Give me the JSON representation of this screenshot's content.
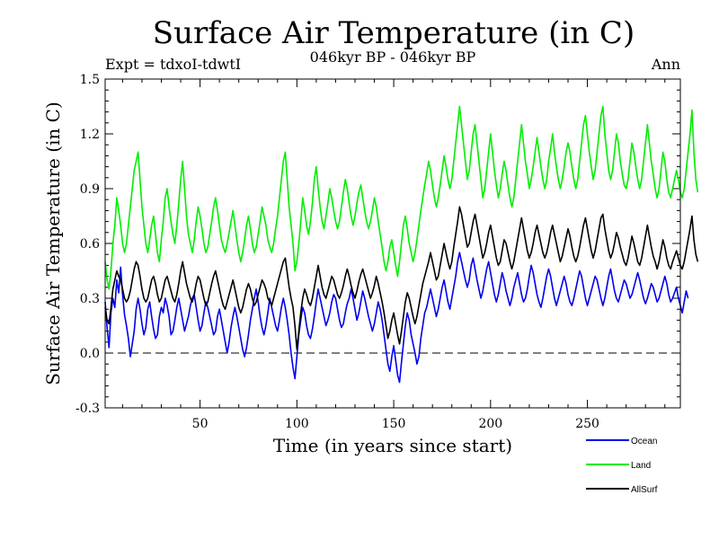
{
  "chart_data": {
    "type": "line",
    "title": "Surface Air Temperature (in C)",
    "subtitle": "046kyr BP - 046kyr BP",
    "expt_label": "Expt = tdxoI-tdwtI",
    "season_label": "Ann",
    "xlabel": "Time (in years since start)",
    "ylabel": "Surface Air Temperature (in C)",
    "xlim": [
      1,
      298
    ],
    "ylim": [
      -0.3,
      1.5
    ],
    "xticks": [
      50,
      100,
      150,
      200,
      250
    ],
    "yticks": [
      -0.3,
      0.0,
      0.3,
      0.6,
      0.9,
      1.2,
      1.5
    ],
    "ytick_labels": [
      "-0.3",
      "0.0",
      "0.3",
      "0.6",
      "0.9",
      "1.2",
      "1.5"
    ],
    "zero_line": "dashed",
    "legend_position": "bottom-right, below plot",
    "x_step": 1,
    "series": [
      {
        "name": "Ocean",
        "color": "#0000ee",
        "values": [
          0.28,
          0.14,
          0.03,
          0.22,
          0.3,
          0.25,
          0.4,
          0.33,
          0.47,
          0.32,
          0.21,
          0.15,
          0.08,
          -0.02,
          0.05,
          0.12,
          0.24,
          0.3,
          0.24,
          0.16,
          0.1,
          0.14,
          0.24,
          0.28,
          0.2,
          0.13,
          0.08,
          0.1,
          0.2,
          0.25,
          0.22,
          0.3,
          0.26,
          0.2,
          0.1,
          0.12,
          0.18,
          0.25,
          0.3,
          0.24,
          0.18,
          0.12,
          0.16,
          0.2,
          0.26,
          0.3,
          0.32,
          0.25,
          0.18,
          0.12,
          0.15,
          0.22,
          0.28,
          0.25,
          0.2,
          0.15,
          0.1,
          0.12,
          0.2,
          0.24,
          0.18,
          0.12,
          0.06,
          0.0,
          0.06,
          0.14,
          0.2,
          0.25,
          0.2,
          0.14,
          0.08,
          0.02,
          -0.02,
          0.03,
          0.1,
          0.18,
          0.24,
          0.3,
          0.35,
          0.28,
          0.2,
          0.14,
          0.1,
          0.15,
          0.22,
          0.3,
          0.25,
          0.2,
          0.15,
          0.12,
          0.18,
          0.25,
          0.3,
          0.25,
          0.18,
          0.1,
          0.0,
          -0.08,
          -0.14,
          -0.02,
          0.1,
          0.18,
          0.25,
          0.22,
          0.15,
          0.1,
          0.08,
          0.13,
          0.2,
          0.28,
          0.35,
          0.3,
          0.25,
          0.2,
          0.15,
          0.18,
          0.22,
          0.28,
          0.32,
          0.3,
          0.24,
          0.18,
          0.14,
          0.16,
          0.22,
          0.27,
          0.3,
          0.35,
          0.3,
          0.24,
          0.18,
          0.22,
          0.28,
          0.34,
          0.3,
          0.25,
          0.2,
          0.16,
          0.12,
          0.16,
          0.22,
          0.28,
          0.24,
          0.18,
          0.1,
          0.02,
          -0.06,
          -0.1,
          -0.02,
          0.04,
          -0.04,
          -0.12,
          -0.16,
          -0.05,
          0.05,
          0.15,
          0.22,
          0.18,
          0.1,
          0.05,
          0.0,
          -0.06,
          -0.02,
          0.08,
          0.15,
          0.22,
          0.25,
          0.3,
          0.35,
          0.3,
          0.25,
          0.2,
          0.24,
          0.3,
          0.36,
          0.4,
          0.34,
          0.28,
          0.24,
          0.3,
          0.36,
          0.42,
          0.5,
          0.55,
          0.5,
          0.45,
          0.4,
          0.36,
          0.4,
          0.48,
          0.52,
          0.46,
          0.4,
          0.35,
          0.3,
          0.34,
          0.4,
          0.46,
          0.5,
          0.44,
          0.38,
          0.32,
          0.28,
          0.32,
          0.38,
          0.44,
          0.4,
          0.34,
          0.3,
          0.26,
          0.3,
          0.36,
          0.4,
          0.44,
          0.38,
          0.32,
          0.28,
          0.3,
          0.35,
          0.42,
          0.48,
          0.44,
          0.38,
          0.32,
          0.28,
          0.25,
          0.3,
          0.36,
          0.42,
          0.46,
          0.42,
          0.36,
          0.3,
          0.26,
          0.3,
          0.34,
          0.38,
          0.42,
          0.38,
          0.32,
          0.28,
          0.26,
          0.3,
          0.35,
          0.4,
          0.45,
          0.42,
          0.36,
          0.3,
          0.26,
          0.3,
          0.34,
          0.38,
          0.42,
          0.4,
          0.35,
          0.3,
          0.26,
          0.3,
          0.36,
          0.42,
          0.46,
          0.4,
          0.34,
          0.3,
          0.28,
          0.32,
          0.36,
          0.4,
          0.38,
          0.34,
          0.3,
          0.32,
          0.36,
          0.4,
          0.44,
          0.4,
          0.35,
          0.3,
          0.27,
          0.3,
          0.34,
          0.38,
          0.36,
          0.32,
          0.28,
          0.3,
          0.34,
          0.38,
          0.42,
          0.38,
          0.32,
          0.28,
          0.3,
          0.33,
          0.36,
          0.3,
          0.26,
          0.22,
          0.28,
          0.34,
          0.3
        ]
      },
      {
        "name": "Land",
        "color": "#00ee00",
        "values": [
          0.5,
          0.4,
          0.35,
          0.45,
          0.6,
          0.7,
          0.85,
          0.78,
          0.7,
          0.6,
          0.55,
          0.6,
          0.7,
          0.8,
          0.9,
          1.0,
          1.05,
          1.1,
          0.95,
          0.8,
          0.7,
          0.6,
          0.55,
          0.62,
          0.7,
          0.75,
          0.65,
          0.55,
          0.5,
          0.62,
          0.72,
          0.85,
          0.9,
          0.8,
          0.72,
          0.65,
          0.6,
          0.7,
          0.82,
          0.95,
          1.05,
          0.9,
          0.75,
          0.65,
          0.6,
          0.55,
          0.62,
          0.72,
          0.8,
          0.75,
          0.68,
          0.6,
          0.55,
          0.58,
          0.65,
          0.72,
          0.8,
          0.85,
          0.78,
          0.7,
          0.62,
          0.58,
          0.55,
          0.6,
          0.66,
          0.72,
          0.78,
          0.7,
          0.62,
          0.55,
          0.5,
          0.55,
          0.62,
          0.7,
          0.75,
          0.68,
          0.6,
          0.55,
          0.58,
          0.65,
          0.72,
          0.8,
          0.75,
          0.7,
          0.62,
          0.58,
          0.55,
          0.6,
          0.68,
          0.75,
          0.85,
          0.95,
          1.05,
          1.1,
          0.95,
          0.8,
          0.7,
          0.6,
          0.45,
          0.5,
          0.6,
          0.72,
          0.85,
          0.78,
          0.7,
          0.65,
          0.72,
          0.82,
          0.95,
          1.02,
          0.9,
          0.8,
          0.72,
          0.68,
          0.75,
          0.82,
          0.9,
          0.85,
          0.78,
          0.72,
          0.68,
          0.72,
          0.8,
          0.88,
          0.95,
          0.9,
          0.82,
          0.75,
          0.7,
          0.75,
          0.82,
          0.88,
          0.92,
          0.85,
          0.78,
          0.72,
          0.68,
          0.72,
          0.78,
          0.85,
          0.8,
          0.72,
          0.65,
          0.58,
          0.5,
          0.45,
          0.5,
          0.58,
          0.62,
          0.55,
          0.48,
          0.42,
          0.5,
          0.6,
          0.7,
          0.75,
          0.68,
          0.6,
          0.55,
          0.5,
          0.55,
          0.62,
          0.7,
          0.78,
          0.85,
          0.92,
          0.98,
          1.05,
          1.0,
          0.92,
          0.85,
          0.8,
          0.85,
          0.92,
          1.0,
          1.08,
          1.02,
          0.95,
          0.9,
          0.95,
          1.05,
          1.15,
          1.25,
          1.35,
          1.25,
          1.15,
          1.05,
          0.95,
          1.0,
          1.1,
          1.2,
          1.25,
          1.15,
          1.05,
          0.95,
          0.85,
          0.9,
          1.0,
          1.1,
          1.2,
          1.1,
          1.0,
          0.92,
          0.85,
          0.9,
          0.98,
          1.05,
          1.0,
          0.92,
          0.85,
          0.8,
          0.85,
          0.95,
          1.05,
          1.15,
          1.25,
          1.15,
          1.05,
          0.98,
          0.9,
          0.95,
          1.02,
          1.1,
          1.18,
          1.1,
          1.02,
          0.95,
          0.9,
          0.95,
          1.05,
          1.12,
          1.2,
          1.1,
          1.02,
          0.95,
          0.9,
          0.95,
          1.02,
          1.1,
          1.15,
          1.1,
          1.02,
          0.95,
          0.9,
          0.95,
          1.05,
          1.15,
          1.25,
          1.3,
          1.2,
          1.1,
          1.02,
          0.95,
          1.0,
          1.1,
          1.2,
          1.3,
          1.35,
          1.2,
          1.1,
          1.0,
          0.95,
          1.0,
          1.1,
          1.2,
          1.15,
          1.05,
          0.98,
          0.92,
          0.9,
          0.95,
          1.05,
          1.15,
          1.1,
          1.02,
          0.95,
          0.9,
          0.95,
          1.05,
          1.15,
          1.25,
          1.15,
          1.05,
          0.98,
          0.9,
          0.85,
          0.9,
          1.0,
          1.1,
          1.05,
          0.95,
          0.88,
          0.85,
          0.9,
          0.95,
          1.0,
          0.95,
          0.88,
          0.85,
          0.9,
          1.0,
          1.1,
          1.2,
          1.33,
          1.1,
          0.95,
          0.88
        ]
      },
      {
        "name": "AllSurf",
        "color": "#000000",
        "values": [
          0.25,
          0.18,
          0.16,
          0.25,
          0.35,
          0.4,
          0.45,
          0.42,
          0.4,
          0.35,
          0.3,
          0.28,
          0.3,
          0.34,
          0.4,
          0.46,
          0.5,
          0.48,
          0.42,
          0.35,
          0.3,
          0.28,
          0.3,
          0.35,
          0.4,
          0.42,
          0.38,
          0.32,
          0.28,
          0.3,
          0.35,
          0.4,
          0.42,
          0.38,
          0.34,
          0.3,
          0.28,
          0.32,
          0.38,
          0.45,
          0.5,
          0.44,
          0.38,
          0.34,
          0.3,
          0.28,
          0.32,
          0.38,
          0.42,
          0.4,
          0.35,
          0.3,
          0.26,
          0.28,
          0.33,
          0.38,
          0.42,
          0.45,
          0.4,
          0.35,
          0.3,
          0.26,
          0.24,
          0.28,
          0.32,
          0.36,
          0.4,
          0.35,
          0.3,
          0.25,
          0.22,
          0.25,
          0.3,
          0.35,
          0.38,
          0.35,
          0.3,
          0.26,
          0.28,
          0.32,
          0.36,
          0.4,
          0.38,
          0.35,
          0.3,
          0.28,
          0.26,
          0.3,
          0.34,
          0.38,
          0.42,
          0.46,
          0.5,
          0.52,
          0.44,
          0.36,
          0.3,
          0.25,
          0.15,
          0.02,
          0.12,
          0.22,
          0.3,
          0.35,
          0.32,
          0.28,
          0.26,
          0.3,
          0.36,
          0.42,
          0.48,
          0.42,
          0.36,
          0.32,
          0.3,
          0.34,
          0.38,
          0.42,
          0.4,
          0.36,
          0.32,
          0.3,
          0.33,
          0.37,
          0.42,
          0.46,
          0.42,
          0.37,
          0.33,
          0.3,
          0.34,
          0.39,
          0.43,
          0.46,
          0.42,
          0.38,
          0.34,
          0.3,
          0.33,
          0.37,
          0.42,
          0.38,
          0.33,
          0.28,
          0.22,
          0.15,
          0.08,
          0.12,
          0.18,
          0.22,
          0.16,
          0.1,
          0.05,
          0.12,
          0.2,
          0.28,
          0.33,
          0.3,
          0.25,
          0.2,
          0.16,
          0.2,
          0.26,
          0.32,
          0.38,
          0.42,
          0.46,
          0.5,
          0.55,
          0.5,
          0.45,
          0.4,
          0.42,
          0.48,
          0.54,
          0.6,
          0.55,
          0.5,
          0.46,
          0.5,
          0.58,
          0.65,
          0.72,
          0.8,
          0.76,
          0.7,
          0.64,
          0.58,
          0.6,
          0.66,
          0.72,
          0.76,
          0.7,
          0.64,
          0.58,
          0.52,
          0.55,
          0.6,
          0.66,
          0.7,
          0.64,
          0.58,
          0.52,
          0.48,
          0.5,
          0.56,
          0.62,
          0.6,
          0.55,
          0.5,
          0.46,
          0.5,
          0.56,
          0.62,
          0.68,
          0.74,
          0.68,
          0.62,
          0.56,
          0.52,
          0.55,
          0.6,
          0.66,
          0.7,
          0.65,
          0.6,
          0.55,
          0.52,
          0.55,
          0.6,
          0.66,
          0.7,
          0.65,
          0.6,
          0.55,
          0.5,
          0.53,
          0.58,
          0.63,
          0.68,
          0.64,
          0.58,
          0.53,
          0.5,
          0.53,
          0.58,
          0.64,
          0.7,
          0.74,
          0.68,
          0.62,
          0.56,
          0.52,
          0.56,
          0.62,
          0.68,
          0.74,
          0.76,
          0.68,
          0.62,
          0.56,
          0.52,
          0.55,
          0.6,
          0.66,
          0.63,
          0.58,
          0.54,
          0.5,
          0.48,
          0.52,
          0.58,
          0.64,
          0.6,
          0.55,
          0.5,
          0.48,
          0.52,
          0.58,
          0.64,
          0.7,
          0.64,
          0.58,
          0.53,
          0.5,
          0.46,
          0.5,
          0.56,
          0.62,
          0.58,
          0.52,
          0.48,
          0.46,
          0.5,
          0.53,
          0.56,
          0.52,
          0.48,
          0.46,
          0.5,
          0.56,
          0.62,
          0.68,
          0.75,
          0.62,
          0.54,
          0.5
        ]
      }
    ]
  }
}
